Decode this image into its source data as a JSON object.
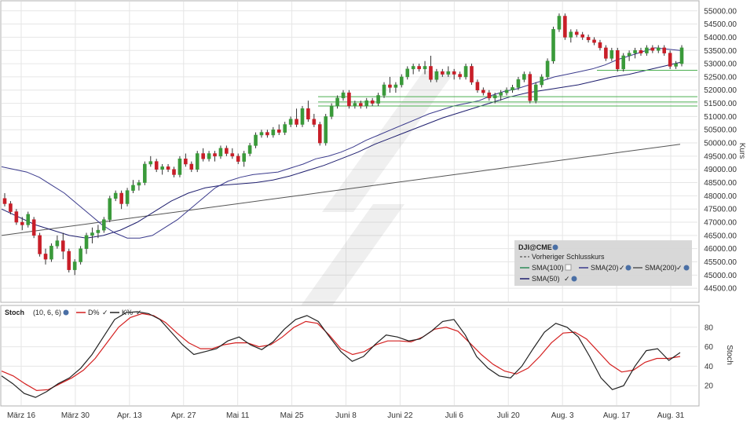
{
  "chart_data": [
    {
      "type": "candlestick",
      "instrument": "DJI@CME",
      "ylabel": "Kurs",
      "ylim": [
        44000,
        55350
      ],
      "y_ticks": [
        "44500.00",
        "45000.00",
        "45500.00",
        "46000.00",
        "46500.00",
        "47000.00",
        "47500.00",
        "48000.00",
        "48500.00",
        "49000.00",
        "49500.00",
        "50000.00",
        "50500.00",
        "51000.00",
        "51500.00",
        "52000.00",
        "52500.00",
        "53000.00",
        "53500.00",
        "54000.00",
        "54500.00",
        "55000.00"
      ],
      "x_ticks": [
        "März 16",
        "März 30",
        "Apr. 13",
        "Apr. 27",
        "Mai 11",
        "Mai 25",
        "Juni 8",
        "Juni 22",
        "Juli 6",
        "Juli 20",
        "Aug. 3",
        "Aug. 17",
        "Aug. 31"
      ],
      "grid": true,
      "legend": {
        "placement": "bottom-right",
        "title": "DJI@CME",
        "entries": [
          "Vorheriger Schlusskurs",
          "SMA(100)",
          "SMA(20)",
          "SMA(200)",
          "SMA(50)"
        ]
      },
      "candles": [
        {
          "o": 47900,
          "h": 48100,
          "l": 47600,
          "c": 47700
        },
        {
          "o": 47700,
          "h": 47800,
          "l": 47300,
          "c": 47400
        },
        {
          "o": 47400,
          "h": 47500,
          "l": 46900,
          "c": 47000
        },
        {
          "o": 47000,
          "h": 47200,
          "l": 46700,
          "c": 46900
        },
        {
          "o": 46900,
          "h": 47400,
          "l": 46800,
          "c": 47300
        },
        {
          "o": 47100,
          "h": 47200,
          "l": 46400,
          "c": 46500
        },
        {
          "o": 46500,
          "h": 46600,
          "l": 45700,
          "c": 45800
        },
        {
          "o": 45800,
          "h": 46000,
          "l": 45400,
          "c": 45600
        },
        {
          "o": 45600,
          "h": 46200,
          "l": 45500,
          "c": 46100
        },
        {
          "o": 46100,
          "h": 46500,
          "l": 46000,
          "c": 46300
        },
        {
          "o": 46300,
          "h": 46600,
          "l": 45600,
          "c": 45900
        },
        {
          "o": 45900,
          "h": 46000,
          "l": 45100,
          "c": 45200
        },
        {
          "o": 45200,
          "h": 45600,
          "l": 45000,
          "c": 45500
        },
        {
          "o": 45500,
          "h": 46100,
          "l": 45400,
          "c": 46000
        },
        {
          "o": 46000,
          "h": 46600,
          "l": 45800,
          "c": 46500
        },
        {
          "o": 46500,
          "h": 46800,
          "l": 46200,
          "c": 46600
        },
        {
          "o": 46600,
          "h": 46900,
          "l": 46400,
          "c": 46700
        },
        {
          "o": 46700,
          "h": 47200,
          "l": 46600,
          "c": 47100
        },
        {
          "o": 47100,
          "h": 48000,
          "l": 47000,
          "c": 47900
        },
        {
          "o": 47900,
          "h": 48200,
          "l": 47800,
          "c": 48100
        },
        {
          "o": 48100,
          "h": 48200,
          "l": 47500,
          "c": 47700
        },
        {
          "o": 47700,
          "h": 48300,
          "l": 47600,
          "c": 48200
        },
        {
          "o": 48200,
          "h": 48600,
          "l": 48100,
          "c": 48400
        },
        {
          "o": 48400,
          "h": 48600,
          "l": 48200,
          "c": 48500
        },
        {
          "o": 48500,
          "h": 49300,
          "l": 48400,
          "c": 49200
        },
        {
          "o": 49200,
          "h": 49500,
          "l": 49100,
          "c": 49300
        },
        {
          "o": 49300,
          "h": 49400,
          "l": 48900,
          "c": 49000
        },
        {
          "o": 49000,
          "h": 49200,
          "l": 48800,
          "c": 49100
        },
        {
          "o": 49100,
          "h": 49200,
          "l": 48900,
          "c": 49000
        },
        {
          "o": 49000,
          "h": 49100,
          "l": 48700,
          "c": 48800
        },
        {
          "o": 48800,
          "h": 49500,
          "l": 48700,
          "c": 49400
        },
        {
          "o": 49400,
          "h": 49600,
          "l": 49100,
          "c": 49200
        },
        {
          "o": 49200,
          "h": 49300,
          "l": 48900,
          "c": 49000
        },
        {
          "o": 49000,
          "h": 49700,
          "l": 48900,
          "c": 49600
        },
        {
          "o": 49600,
          "h": 49800,
          "l": 49300,
          "c": 49400
        },
        {
          "o": 49400,
          "h": 49700,
          "l": 49300,
          "c": 49600
        },
        {
          "o": 49600,
          "h": 49700,
          "l": 49300,
          "c": 49500
        },
        {
          "o": 49500,
          "h": 49900,
          "l": 49400,
          "c": 49800
        },
        {
          "o": 49800,
          "h": 49900,
          "l": 49500,
          "c": 49600
        },
        {
          "o": 49600,
          "h": 49800,
          "l": 49400,
          "c": 49500
        },
        {
          "o": 49500,
          "h": 49600,
          "l": 49200,
          "c": 49300
        },
        {
          "o": 49300,
          "h": 49700,
          "l": 49100,
          "c": 49600
        },
        {
          "o": 49600,
          "h": 50000,
          "l": 49500,
          "c": 49900
        },
        {
          "o": 49900,
          "h": 50400,
          "l": 49800,
          "c": 50300
        },
        {
          "o": 50300,
          "h": 50500,
          "l": 50200,
          "c": 50400
        },
        {
          "o": 50400,
          "h": 50500,
          "l": 50200,
          "c": 50300
        },
        {
          "o": 50300,
          "h": 50600,
          "l": 50200,
          "c": 50500
        },
        {
          "o": 50500,
          "h": 50700,
          "l": 50300,
          "c": 50400
        },
        {
          "o": 50400,
          "h": 50800,
          "l": 50300,
          "c": 50700
        },
        {
          "o": 50700,
          "h": 51000,
          "l": 50600,
          "c": 50900
        },
        {
          "o": 50900,
          "h": 51300,
          "l": 50600,
          "c": 50700
        },
        {
          "o": 50700,
          "h": 51400,
          "l": 50600,
          "c": 51300
        },
        {
          "o": 51300,
          "h": 51600,
          "l": 50800,
          "c": 50900
        },
        {
          "o": 50900,
          "h": 51100,
          "l": 50600,
          "c": 50700
        },
        {
          "o": 50700,
          "h": 50800,
          "l": 49900,
          "c": 50000
        },
        {
          "o": 50000,
          "h": 51100,
          "l": 49900,
          "c": 51000
        },
        {
          "o": 51000,
          "h": 51500,
          "l": 50900,
          "c": 51400
        },
        {
          "o": 51400,
          "h": 51800,
          "l": 51300,
          "c": 51700
        },
        {
          "o": 51700,
          "h": 52000,
          "l": 51600,
          "c": 51900
        },
        {
          "o": 51900,
          "h": 52000,
          "l": 51300,
          "c": 51400
        },
        {
          "o": 51400,
          "h": 51600,
          "l": 51300,
          "c": 51500
        },
        {
          "o": 51500,
          "h": 51600,
          "l": 51300,
          "c": 51400
        },
        {
          "o": 51400,
          "h": 51700,
          "l": 51300,
          "c": 51600
        },
        {
          "o": 51600,
          "h": 51700,
          "l": 51400,
          "c": 51500
        },
        {
          "o": 51500,
          "h": 51900,
          "l": 51400,
          "c": 51800
        },
        {
          "o": 51800,
          "h": 52300,
          "l": 51700,
          "c": 52200
        },
        {
          "o": 52200,
          "h": 52500,
          "l": 51900,
          "c": 52100
        },
        {
          "o": 52100,
          "h": 52300,
          "l": 51900,
          "c": 52200
        },
        {
          "o": 52200,
          "h": 52600,
          "l": 52100,
          "c": 52500
        },
        {
          "o": 52500,
          "h": 52900,
          "l": 52400,
          "c": 52800
        },
        {
          "o": 52800,
          "h": 53000,
          "l": 52600,
          "c": 52900
        },
        {
          "o": 52900,
          "h": 53000,
          "l": 52700,
          "c": 52800
        },
        {
          "o": 52800,
          "h": 53100,
          "l": 52600,
          "c": 52900
        },
        {
          "o": 52900,
          "h": 53300,
          "l": 52300,
          "c": 52400
        },
        {
          "o": 52400,
          "h": 52800,
          "l": 52300,
          "c": 52700
        },
        {
          "o": 52700,
          "h": 52800,
          "l": 52500,
          "c": 52600
        },
        {
          "o": 52600,
          "h": 52900,
          "l": 52500,
          "c": 52700
        },
        {
          "o": 52700,
          "h": 52800,
          "l": 52400,
          "c": 52600
        },
        {
          "o": 52600,
          "h": 52700,
          "l": 52400,
          "c": 52500
        },
        {
          "o": 52500,
          "h": 53000,
          "l": 52400,
          "c": 52900
        },
        {
          "o": 52900,
          "h": 53000,
          "l": 52200,
          "c": 52300
        },
        {
          "o": 52300,
          "h": 52400,
          "l": 51900,
          "c": 52000
        },
        {
          "o": 52000,
          "h": 52100,
          "l": 51800,
          "c": 51900
        },
        {
          "o": 51900,
          "h": 52000,
          "l": 51600,
          "c": 51700
        },
        {
          "o": 51700,
          "h": 51900,
          "l": 51500,
          "c": 51800
        },
        {
          "o": 51800,
          "h": 52000,
          "l": 51600,
          "c": 51900
        },
        {
          "o": 51900,
          "h": 52100,
          "l": 51800,
          "c": 52000
        },
        {
          "o": 52000,
          "h": 52200,
          "l": 51900,
          "c": 52100
        },
        {
          "o": 52100,
          "h": 52500,
          "l": 52000,
          "c": 52400
        },
        {
          "o": 52400,
          "h": 52700,
          "l": 52300,
          "c": 52600
        },
        {
          "o": 52600,
          "h": 52700,
          "l": 51500,
          "c": 51600
        },
        {
          "o": 51600,
          "h": 52300,
          "l": 51500,
          "c": 52200
        },
        {
          "o": 52200,
          "h": 52600,
          "l": 52100,
          "c": 52500
        },
        {
          "o": 52500,
          "h": 53200,
          "l": 52400,
          "c": 53100
        },
        {
          "o": 53100,
          "h": 54400,
          "l": 53000,
          "c": 54300
        },
        {
          "o": 54300,
          "h": 54900,
          "l": 54200,
          "c": 54800
        },
        {
          "o": 54800,
          "h": 54900,
          "l": 53900,
          "c": 54000
        },
        {
          "o": 54000,
          "h": 54300,
          "l": 53800,
          "c": 54200
        },
        {
          "o": 54200,
          "h": 54300,
          "l": 54000,
          "c": 54100
        },
        {
          "o": 54100,
          "h": 54200,
          "l": 53900,
          "c": 54000
        },
        {
          "o": 54000,
          "h": 54100,
          "l": 53800,
          "c": 53900
        },
        {
          "o": 53900,
          "h": 54000,
          "l": 53700,
          "c": 53800
        },
        {
          "o": 53800,
          "h": 53900,
          "l": 53500,
          "c": 53600
        },
        {
          "o": 53600,
          "h": 53700,
          "l": 53100,
          "c": 53200
        },
        {
          "o": 53200,
          "h": 53600,
          "l": 53100,
          "c": 53500
        },
        {
          "o": 53500,
          "h": 53600,
          "l": 52700,
          "c": 52800
        },
        {
          "o": 52800,
          "h": 53400,
          "l": 52700,
          "c": 53300
        },
        {
          "o": 53300,
          "h": 53500,
          "l": 53100,
          "c": 53400
        },
        {
          "o": 53400,
          "h": 53600,
          "l": 53200,
          "c": 53500
        },
        {
          "o": 53500,
          "h": 53600,
          "l": 53300,
          "c": 53400
        },
        {
          "o": 53400,
          "h": 53700,
          "l": 53300,
          "c": 53600
        },
        {
          "o": 53600,
          "h": 53700,
          "l": 53400,
          "c": 53500
        },
        {
          "o": 53500,
          "h": 53700,
          "l": 53400,
          "c": 53600
        },
        {
          "o": 53600,
          "h": 53700,
          "l": 53300,
          "c": 53400
        },
        {
          "o": 53400,
          "h": 53500,
          "l": 52800,
          "c": 52900
        },
        {
          "o": 52900,
          "h": 53100,
          "l": 52800,
          "c": 53000
        },
        {
          "o": 53000,
          "h": 53700,
          "l": 52900,
          "c": 53600
        }
      ],
      "sma20": [
        49100,
        49000,
        48900,
        48700,
        48400,
        48100,
        47700,
        47300,
        46900,
        46600,
        46400,
        46400,
        46500,
        46800,
        47100,
        47500,
        47900,
        48300,
        48550,
        48700,
        48800,
        48850,
        48900,
        49050,
        49200,
        49400,
        49500,
        49650,
        49850,
        50100,
        50300,
        50500,
        50700,
        50900,
        51100,
        51250,
        51400,
        51500,
        51600,
        51800,
        51950,
        52050,
        52200,
        52350,
        52500,
        52600,
        52700,
        52800,
        52950,
        53150,
        53300,
        53450,
        53600,
        53550,
        53500
      ],
      "sma50": [
        47500,
        47200,
        46900,
        46700,
        46500,
        46400,
        46500,
        46700,
        47000,
        47400,
        47800,
        48100,
        48300,
        48400,
        48450,
        48500,
        48600,
        48750,
        48950,
        49150,
        49400,
        49650,
        49950,
        50200,
        50450,
        50700,
        50950,
        51150,
        51350,
        51550,
        51750,
        51900,
        52000,
        52100,
        52200,
        52350,
        52500,
        52600,
        52750,
        52900,
        53050
      ],
      "sma200": [
        46500,
        46650,
        46800,
        46950,
        47100,
        47250,
        47400,
        47550,
        47700,
        47850,
        48000,
        48150,
        48300,
        48450,
        48600,
        48750,
        48900,
        49050,
        49200,
        49350,
        49500,
        49650,
        49800,
        49950
      ],
      "horizontal_levels": [
        52750,
        51750,
        51550,
        51400
      ],
      "stoch_panel": {
        "title": "Stoch",
        "params": "(10, 6, 6)",
        "series_labels": [
          "D%",
          "K%"
        ],
        "ylabel": "Stoch",
        "ylim": [
          0,
          100
        ],
        "y_ticks": [
          "20",
          "40",
          "60",
          "80"
        ],
        "k": [
          30,
          22,
          12,
          8,
          14,
          22,
          28,
          38,
          52,
          70,
          88,
          95,
          96,
          94,
          88,
          75,
          62,
          52,
          55,
          58,
          66,
          70,
          62,
          57,
          65,
          78,
          88,
          92,
          86,
          70,
          55,
          45,
          50,
          62,
          72,
          70,
          66,
          68,
          76,
          86,
          88,
          72,
          50,
          38,
          30,
          28,
          40,
          58,
          75,
          84,
          80,
          70,
          50,
          28,
          16,
          20,
          40,
          56,
          58,
          46,
          54
        ],
        "d": [
          35,
          30,
          22,
          15,
          16,
          22,
          28,
          36,
          48,
          64,
          80,
          90,
          94,
          92,
          85,
          74,
          64,
          58,
          58,
          62,
          64,
          64,
          60,
          62,
          70,
          80,
          86,
          84,
          72,
          58,
          52,
          55,
          62,
          66,
          66,
          65,
          70,
          78,
          80,
          76,
          64,
          52,
          42,
          35,
          32,
          38,
          50,
          64,
          74,
          75,
          68,
          55,
          42,
          34,
          36,
          44,
          48,
          48,
          50
        ]
      }
    }
  ],
  "colors": {
    "up": "#3a9a3a",
    "down": "#c81e28",
    "sma20": "#3a3a8c",
    "sma50": "#1e1e6e",
    "sma200": "#555555",
    "sma100": "#2e8b57",
    "level": "#4caf50",
    "d_line": "#d42020",
    "k_line": "#222222"
  }
}
